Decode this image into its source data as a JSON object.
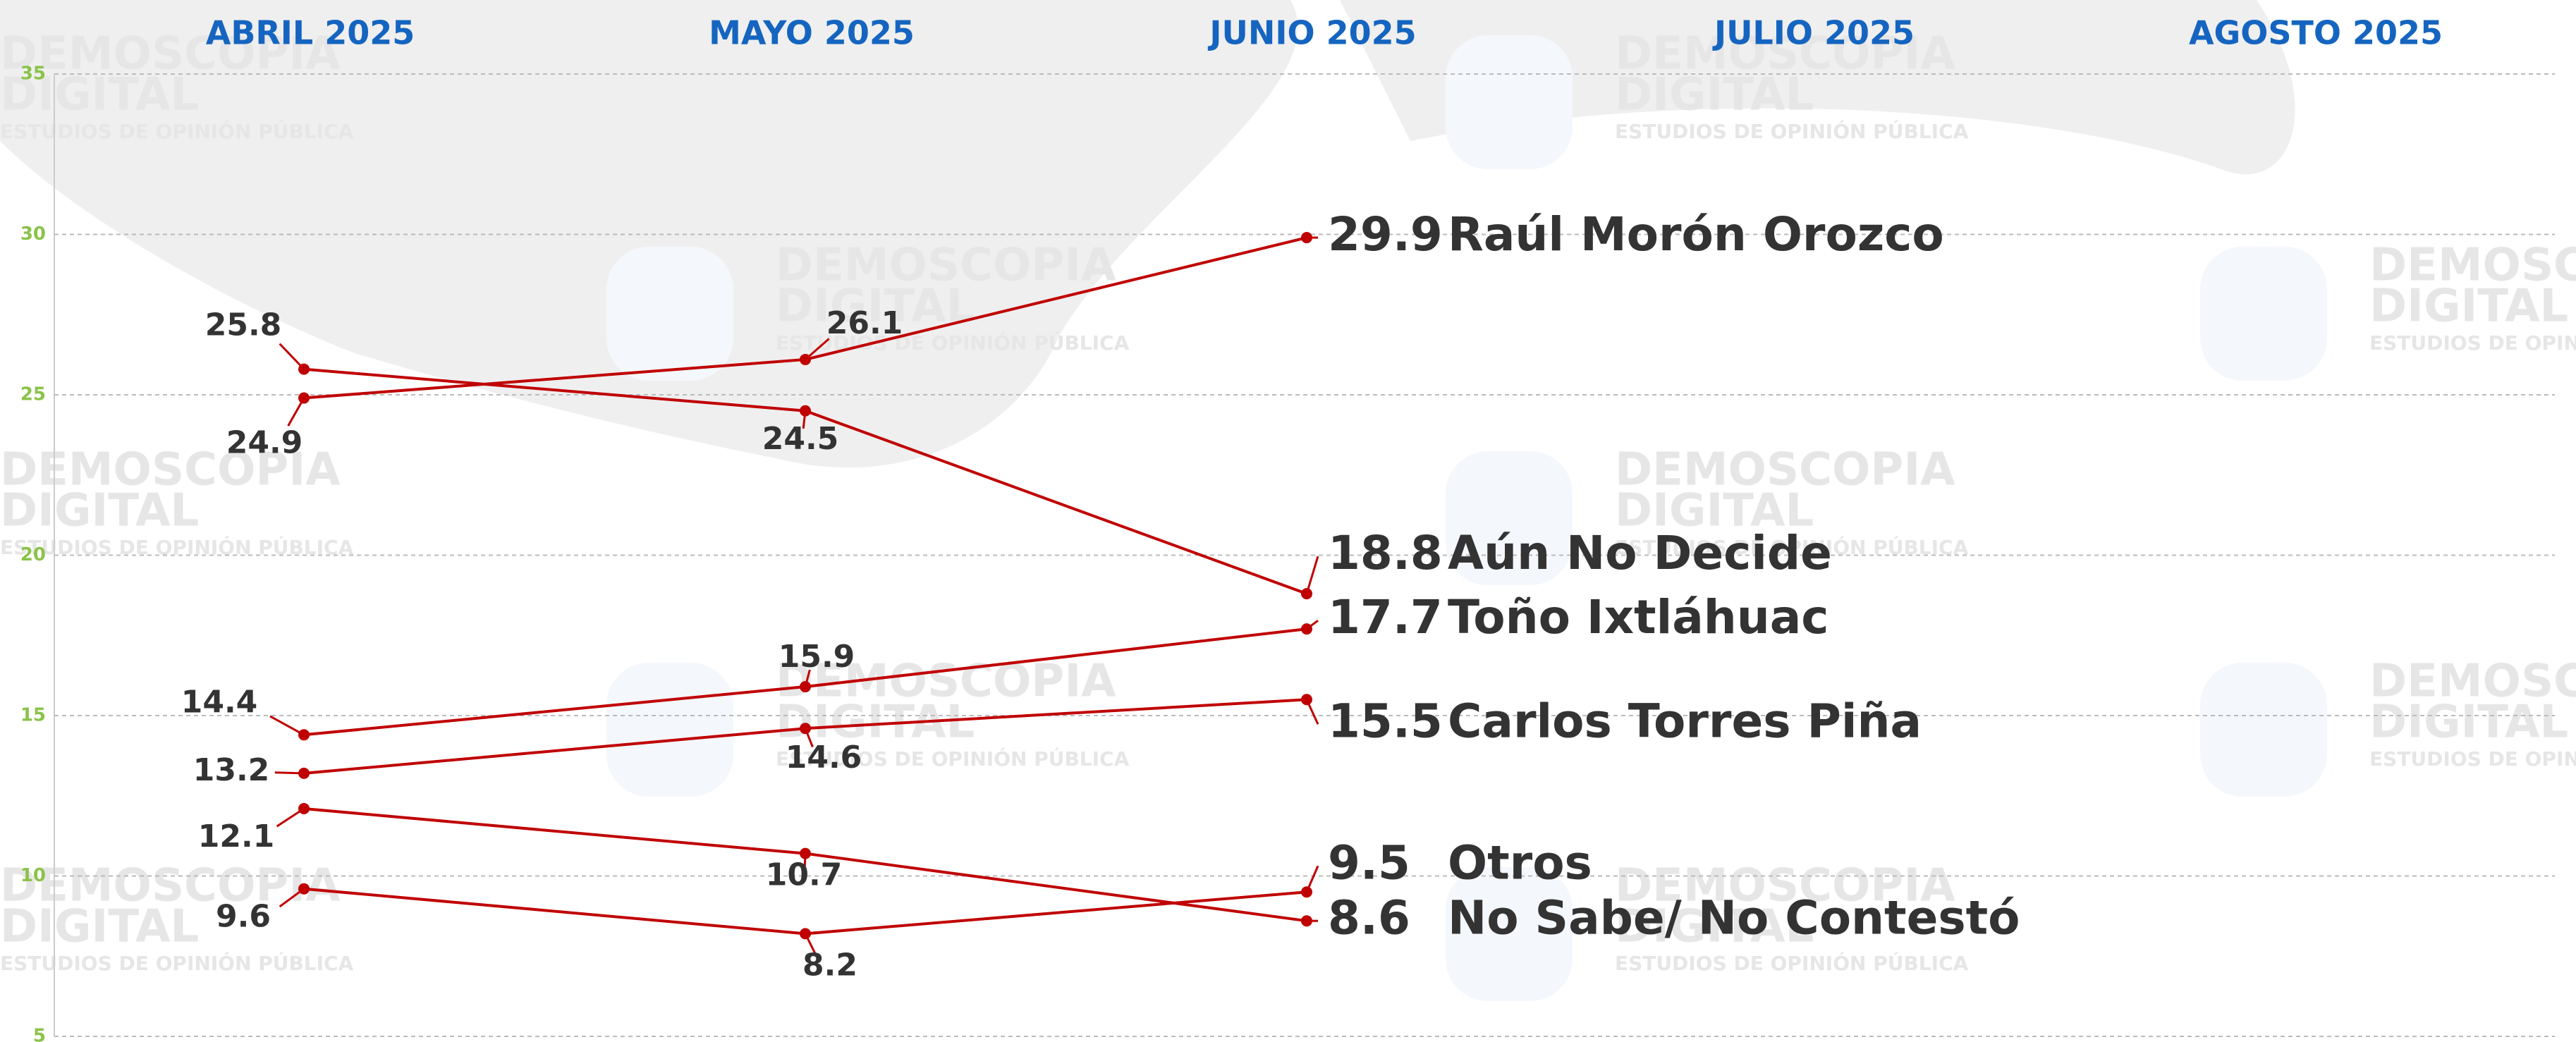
{
  "chart_data": {
    "type": "line",
    "categories": [
      "ABRIL 2025",
      "MAYO 2025",
      "JUNIO 2025",
      "JULIO 2025",
      "AGOSTO 2025"
    ],
    "series": [
      {
        "name": "Raúl Morón Orozco",
        "color": "#c00000",
        "values": [
          24.9,
          26.1,
          29.9,
          null,
          null
        ]
      },
      {
        "name": "Aún No Decide",
        "color": "#c00000",
        "values": [
          25.8,
          24.5,
          18.8,
          null,
          null
        ]
      },
      {
        "name": "Toño Ixtláhuac",
        "color": "#c00000",
        "values": [
          14.4,
          15.9,
          17.7,
          null,
          null
        ]
      },
      {
        "name": "Carlos Torres Piña",
        "color": "#c00000",
        "values": [
          13.2,
          14.6,
          15.5,
          null,
          null
        ]
      },
      {
        "name": "Otros",
        "color": "#c00000",
        "values": [
          9.6,
          8.2,
          9.5,
          null,
          null
        ]
      },
      {
        "name": "No Sabe/ No Contestó",
        "color": "#c00000",
        "values": [
          12.1,
          10.7,
          8.6,
          null,
          null
        ]
      }
    ],
    "ylim": [
      5,
      35
    ],
    "yticks": [
      5,
      10,
      15,
      20,
      25,
      30,
      35
    ],
    "grid": true,
    "watermark": {
      "brand1": "DEMOSCOPIA",
      "brand2": "DIGITAL",
      "tagline": "ESTUDIOS DE OPINIÓN PÚBLICA"
    }
  }
}
